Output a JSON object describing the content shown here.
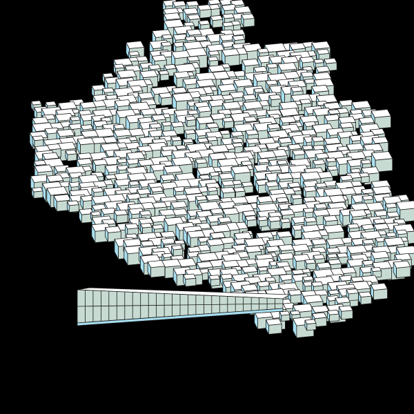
{
  "scene": {
    "background": "#000000",
    "cube_colors": {
      "top": "#ffffff",
      "left": "#a8dff0",
      "right": "#c7dbd2",
      "edge": "#1a1a1a"
    },
    "icons": {
      "voxel": "cube-icon"
    }
  }
}
